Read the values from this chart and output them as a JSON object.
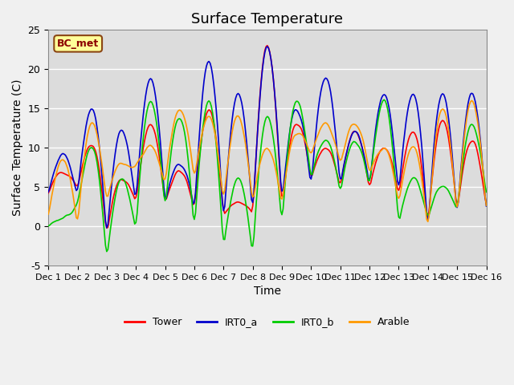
{
  "title": "Surface Temperature",
  "xlabel": "Time",
  "ylabel": "Surface Temperature (C)",
  "ylim": [
    -5,
    25
  ],
  "xlim": [
    0,
    360
  ],
  "annotation": "BC_met",
  "bg_color": "#e8e8e8",
  "plot_bg": "#e0e0e0",
  "grid_color": "white",
  "series_colors": {
    "Tower": "#ff0000",
    "IRT0_a": "#0000cc",
    "IRT0_b": "#00cc00",
    "Arable": "#ff9900"
  },
  "xtick_labels": [
    "Dec 1",
    "Dec 2",
    "Dec 3",
    "Dec 4",
    "Dec 5",
    "Dec 6",
    "Dec 7",
    "Dec 8",
    "Dec 9",
    "Dec 10",
    "Dec 11",
    "Dec 12",
    "Dec 13",
    "Dec 14",
    "Dec 15",
    "Dec 16"
  ],
  "xtick_positions": [
    0,
    24,
    48,
    72,
    96,
    120,
    144,
    168,
    192,
    216,
    240,
    264,
    288,
    312,
    336,
    360
  ],
  "ytick_labels": [
    "-5",
    "0",
    "5",
    "10",
    "15",
    "20",
    "25"
  ],
  "ytick_positions": [
    -5,
    0,
    5,
    10,
    15,
    20,
    25
  ],
  "linewidth": 1.2
}
